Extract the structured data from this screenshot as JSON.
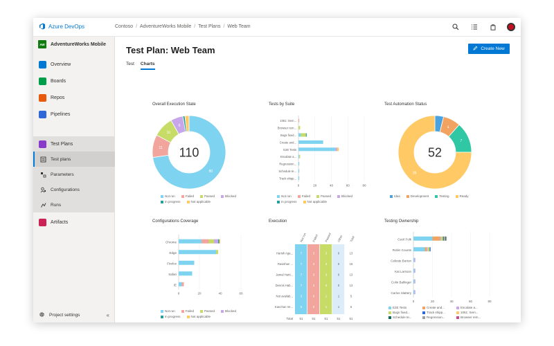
{
  "app": {
    "brand": "Azure DevOps",
    "breadcrumbs": [
      "Contoso",
      "AdventureWorks Mobile",
      "Test Plans",
      "Web Team"
    ]
  },
  "colors": {
    "not_run": "#7ed3f0",
    "failed": "#f1a59d",
    "passed": "#c7db67",
    "blocked": "#c8a6ea",
    "in_progress": "#2aa198",
    "not_applicable": "#ffc966",
    "accent": "#0078d4"
  },
  "sidebar": {
    "project": {
      "badge": "AW",
      "name": "AdventureWorks Mobile"
    },
    "items": [
      {
        "label": "Overview",
        "icon": "overview-icon",
        "color": "#0078d4"
      },
      {
        "label": "Boards",
        "icon": "boards-icon",
        "color": "#009e49"
      },
      {
        "label": "Repos",
        "icon": "repos-icon",
        "color": "#e8590c"
      },
      {
        "label": "Pipelines",
        "icon": "pipelines-icon",
        "color": "#2f66d8"
      },
      {
        "label": "Test Plans",
        "icon": "test-plans-icon",
        "color": "#8a3ac9"
      }
    ],
    "sub_items": [
      {
        "label": "Test plans",
        "icon": "test-plans-sub-icon"
      },
      {
        "label": "Parameters",
        "icon": "parameters-icon"
      },
      {
        "label": "Configurations",
        "icon": "configurations-icon"
      },
      {
        "label": "Runs",
        "icon": "runs-icon"
      }
    ],
    "artifacts": {
      "label": "Artifacts",
      "icon": "artifacts-icon",
      "color": "#cc2255"
    },
    "settings": {
      "label": "Project settings"
    }
  },
  "main": {
    "title": "Test Plan: Web Team",
    "create_label": "Create New",
    "tabs": [
      "Test",
      "Charts"
    ]
  },
  "legend_states": [
    "Not run",
    "Failed",
    "Passed",
    "Blocked",
    "In progress",
    "Not applicable"
  ],
  "chart_data": [
    {
      "id": "execution_state",
      "type": "pie",
      "title": "Overall Execution State",
      "center_label": "110",
      "slices": [
        {
          "label": "Not run",
          "value": 80,
          "color": "#7ed3f0"
        },
        {
          "label": "Failed",
          "value": 11,
          "color": "#f1a59d"
        },
        {
          "label": "Passed",
          "value": 10,
          "color": "#c7db67"
        },
        {
          "label": "Blocked",
          "value": 6,
          "color": "#c8a6ea"
        },
        {
          "label": "In progress",
          "value": 1,
          "color": "#2aa198"
        },
        {
          "label": "Not applicable",
          "value": 2,
          "color": "#ffc966"
        }
      ]
    },
    {
      "id": "tests_by_suite",
      "type": "bar",
      "title": "Tests by Suite",
      "categories": [
        "1061: Sem...",
        "Browser rem...",
        "Bugs fixed...",
        "Create and...",
        "E2E Tests",
        "Escalate a...",
        "Regression...",
        "Schedule te...",
        "Track shipp..."
      ],
      "series": [
        {
          "name": "Not run",
          "values": [
            0,
            0,
            3,
            30,
            45,
            1,
            1,
            1,
            1
          ]
        },
        {
          "name": "Failed",
          "values": [
            1,
            0,
            0,
            0,
            0,
            0,
            0,
            0,
            0
          ]
        },
        {
          "name": "Passed",
          "values": [
            0,
            2,
            6,
            0,
            0,
            1,
            0,
            0,
            0
          ]
        },
        {
          "name": "Blocked",
          "values": [
            0,
            0,
            0,
            0,
            2,
            0,
            0,
            0,
            0
          ]
        },
        {
          "name": "In progress",
          "values": [
            0,
            0,
            1,
            0,
            0,
            0,
            0,
            0,
            0
          ]
        },
        {
          "name": "Not applicable",
          "values": [
            0,
            0,
            0,
            0,
            2,
            0,
            0,
            0,
            0
          ]
        }
      ],
      "xticks": [
        "0",
        "20",
        "40",
        "60",
        "80"
      ],
      "xlim": [
        0,
        80
      ]
    },
    {
      "id": "automation_status",
      "type": "pie",
      "title": "Test Automation Status",
      "center_label": "52",
      "legend": [
        "Idea",
        "Development",
        "Testing",
        "Ready"
      ],
      "slices": [
        {
          "label": "Idea",
          "value": 2,
          "color": "#4aa3df"
        },
        {
          "label": "Development",
          "value": 4,
          "color": "#f3a361"
        },
        {
          "label": "Testing",
          "value": 7,
          "color": "#2fc7a4"
        },
        {
          "label": "Ready",
          "value": 39,
          "color": "#ffc966"
        }
      ]
    },
    {
      "id": "configurations_coverage",
      "type": "bar",
      "title": "Configurations Coverage",
      "categories": [
        "Chrome",
        "Edge",
        "Firefox",
        "Safari",
        "IE"
      ],
      "series": [
        {
          "name": "Not run",
          "values": [
            22,
            36,
            15,
            13,
            3
          ]
        },
        {
          "name": "Failed",
          "values": [
            7,
            0,
            0,
            0,
            2
          ]
        },
        {
          "name": "Passed",
          "values": [
            5,
            2,
            0,
            0,
            0
          ]
        },
        {
          "name": "Blocked",
          "values": [
            4,
            0,
            0,
            0,
            0
          ]
        },
        {
          "name": "In progress",
          "values": [
            1,
            0,
            0,
            0,
            0
          ]
        },
        {
          "name": "Not applicable",
          "values": [
            1,
            0,
            0,
            0,
            0
          ]
        }
      ],
      "xticks": [
        "0",
        "20",
        "40",
        "60"
      ],
      "xlim": [
        0,
        60
      ]
    },
    {
      "id": "execution",
      "type": "table",
      "title": "Execution",
      "columns": [
        "Not run",
        "Failed",
        "Passed",
        "Other",
        "Total"
      ],
      "rows": [
        {
          "label": "Harish Aga...",
          "values": [
            "7",
            "3",
            "3",
            "0",
            "13"
          ]
        },
        {
          "label": "Ravishan ...",
          "values": [
            "7",
            "3",
            "3",
            "0",
            "15"
          ]
        },
        {
          "label": "Jamal Harti...",
          "values": [
            "7",
            "3",
            "3",
            "0",
            "13"
          ]
        },
        {
          "label": "Dennis Hab...",
          "values": [
            "7",
            "3",
            "3",
            "0",
            "13"
          ]
        },
        {
          "label": "Not availab...",
          "values": [
            "3",
            "0",
            "1",
            "1",
            "5"
          ]
        },
        {
          "label": "Kanchan Ve...",
          "values": [
            "5",
            "0",
            "1",
            "1",
            "6"
          ]
        }
      ],
      "total_label": "Total",
      "totals": [
        "51",
        "51",
        "51",
        "51",
        "51"
      ]
    },
    {
      "id": "testing_ownership",
      "type": "bar",
      "title": "Testing Ownership",
      "categories": [
        "Cecil Folk",
        "Robin Counts",
        "Celeste Burton",
        "Kat Larsson",
        "Colin Ballinger",
        "Carlos Slattery"
      ],
      "series": [
        {
          "name": "E2E Tests",
          "values": [
            20,
            12,
            1,
            1,
            1,
            1
          ]
        },
        {
          "name": "Create and...",
          "values": [
            8,
            2,
            0,
            0,
            0,
            0
          ]
        },
        {
          "name": "Escalate a...",
          "values": [
            1,
            1,
            1,
            1,
            1,
            1
          ]
        },
        {
          "name": "Bugs fixed...",
          "values": [
            2,
            2,
            0,
            0,
            0,
            0
          ]
        },
        {
          "name": "Track shipp...",
          "values": [
            1,
            1,
            0,
            0,
            0,
            0
          ]
        },
        {
          "name": "1061: Sem...",
          "values": [
            1,
            0,
            0,
            0,
            0,
            0
          ]
        },
        {
          "name": "Schedule te...",
          "values": [
            1,
            0,
            0,
            0,
            0,
            0
          ]
        },
        {
          "name": "Regression...",
          "values": [
            1,
            0,
            0,
            0,
            0,
            0
          ]
        },
        {
          "name": "Browser rem...",
          "values": [
            0,
            0,
            0,
            0,
            0,
            0
          ]
        }
      ],
      "series_colors": [
        "#7ed3f0",
        "#f3a361",
        "#c8a6ea",
        "#c7db67",
        "#2f66d8",
        "#ffc966",
        "#0f6b5d",
        "#9e9e9e",
        "#c44d8a"
      ],
      "xticks": [
        "0",
        "20",
        "40",
        "60",
        "80"
      ],
      "xlim": [
        0,
        80
      ]
    }
  ]
}
